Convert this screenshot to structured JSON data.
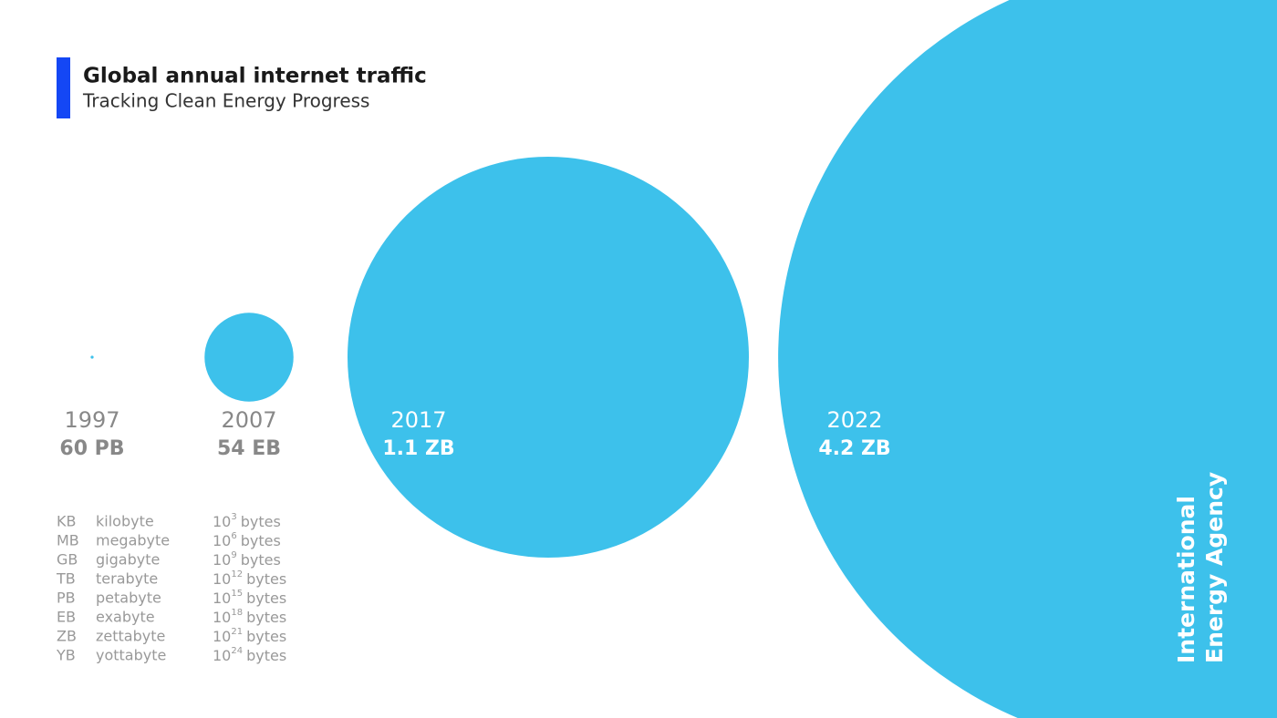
{
  "chart_data": {
    "type": "bubble",
    "title": "Global annual internet traffic",
    "subtitle": "Tracking Clean Energy Progress",
    "categories": [
      "1997",
      "2007",
      "2017",
      "2022"
    ],
    "values": [
      6e+16,
      5.4e+19,
      1.1e+21,
      4.2e+21
    ],
    "value_labels": [
      "60 PB",
      "54 EB",
      "1.1 ZB",
      "4.2 ZB"
    ],
    "color": "#3dc1eb",
    "units_legend": [
      {
        "abbr": "KB",
        "name": "kilobyte",
        "base": "10",
        "exp": "3",
        "unit": "bytes"
      },
      {
        "abbr": "MB",
        "name": "megabyte",
        "base": "10",
        "exp": "6",
        "unit": "bytes"
      },
      {
        "abbr": "GB",
        "name": "gigabyte",
        "base": "10",
        "exp": "9",
        "unit": "bytes"
      },
      {
        "abbr": "TB",
        "name": "terabyte",
        "base": "10",
        "exp": "12",
        "unit": "bytes"
      },
      {
        "abbr": "PB",
        "name": "petabyte",
        "base": "10",
        "exp": "15",
        "unit": "bytes"
      },
      {
        "abbr": "EB",
        "name": "exabyte",
        "base": "10",
        "exp": "18",
        "unit": "bytes"
      },
      {
        "abbr": "ZB",
        "name": "zettabyte",
        "base": "10",
        "exp": "21",
        "unit": "bytes"
      },
      {
        "abbr": "YB",
        "name": "yottabyte",
        "base": "10",
        "exp": "24",
        "unit": "bytes"
      }
    ],
    "source_lines": [
      "International",
      "Energy Agency"
    ]
  }
}
